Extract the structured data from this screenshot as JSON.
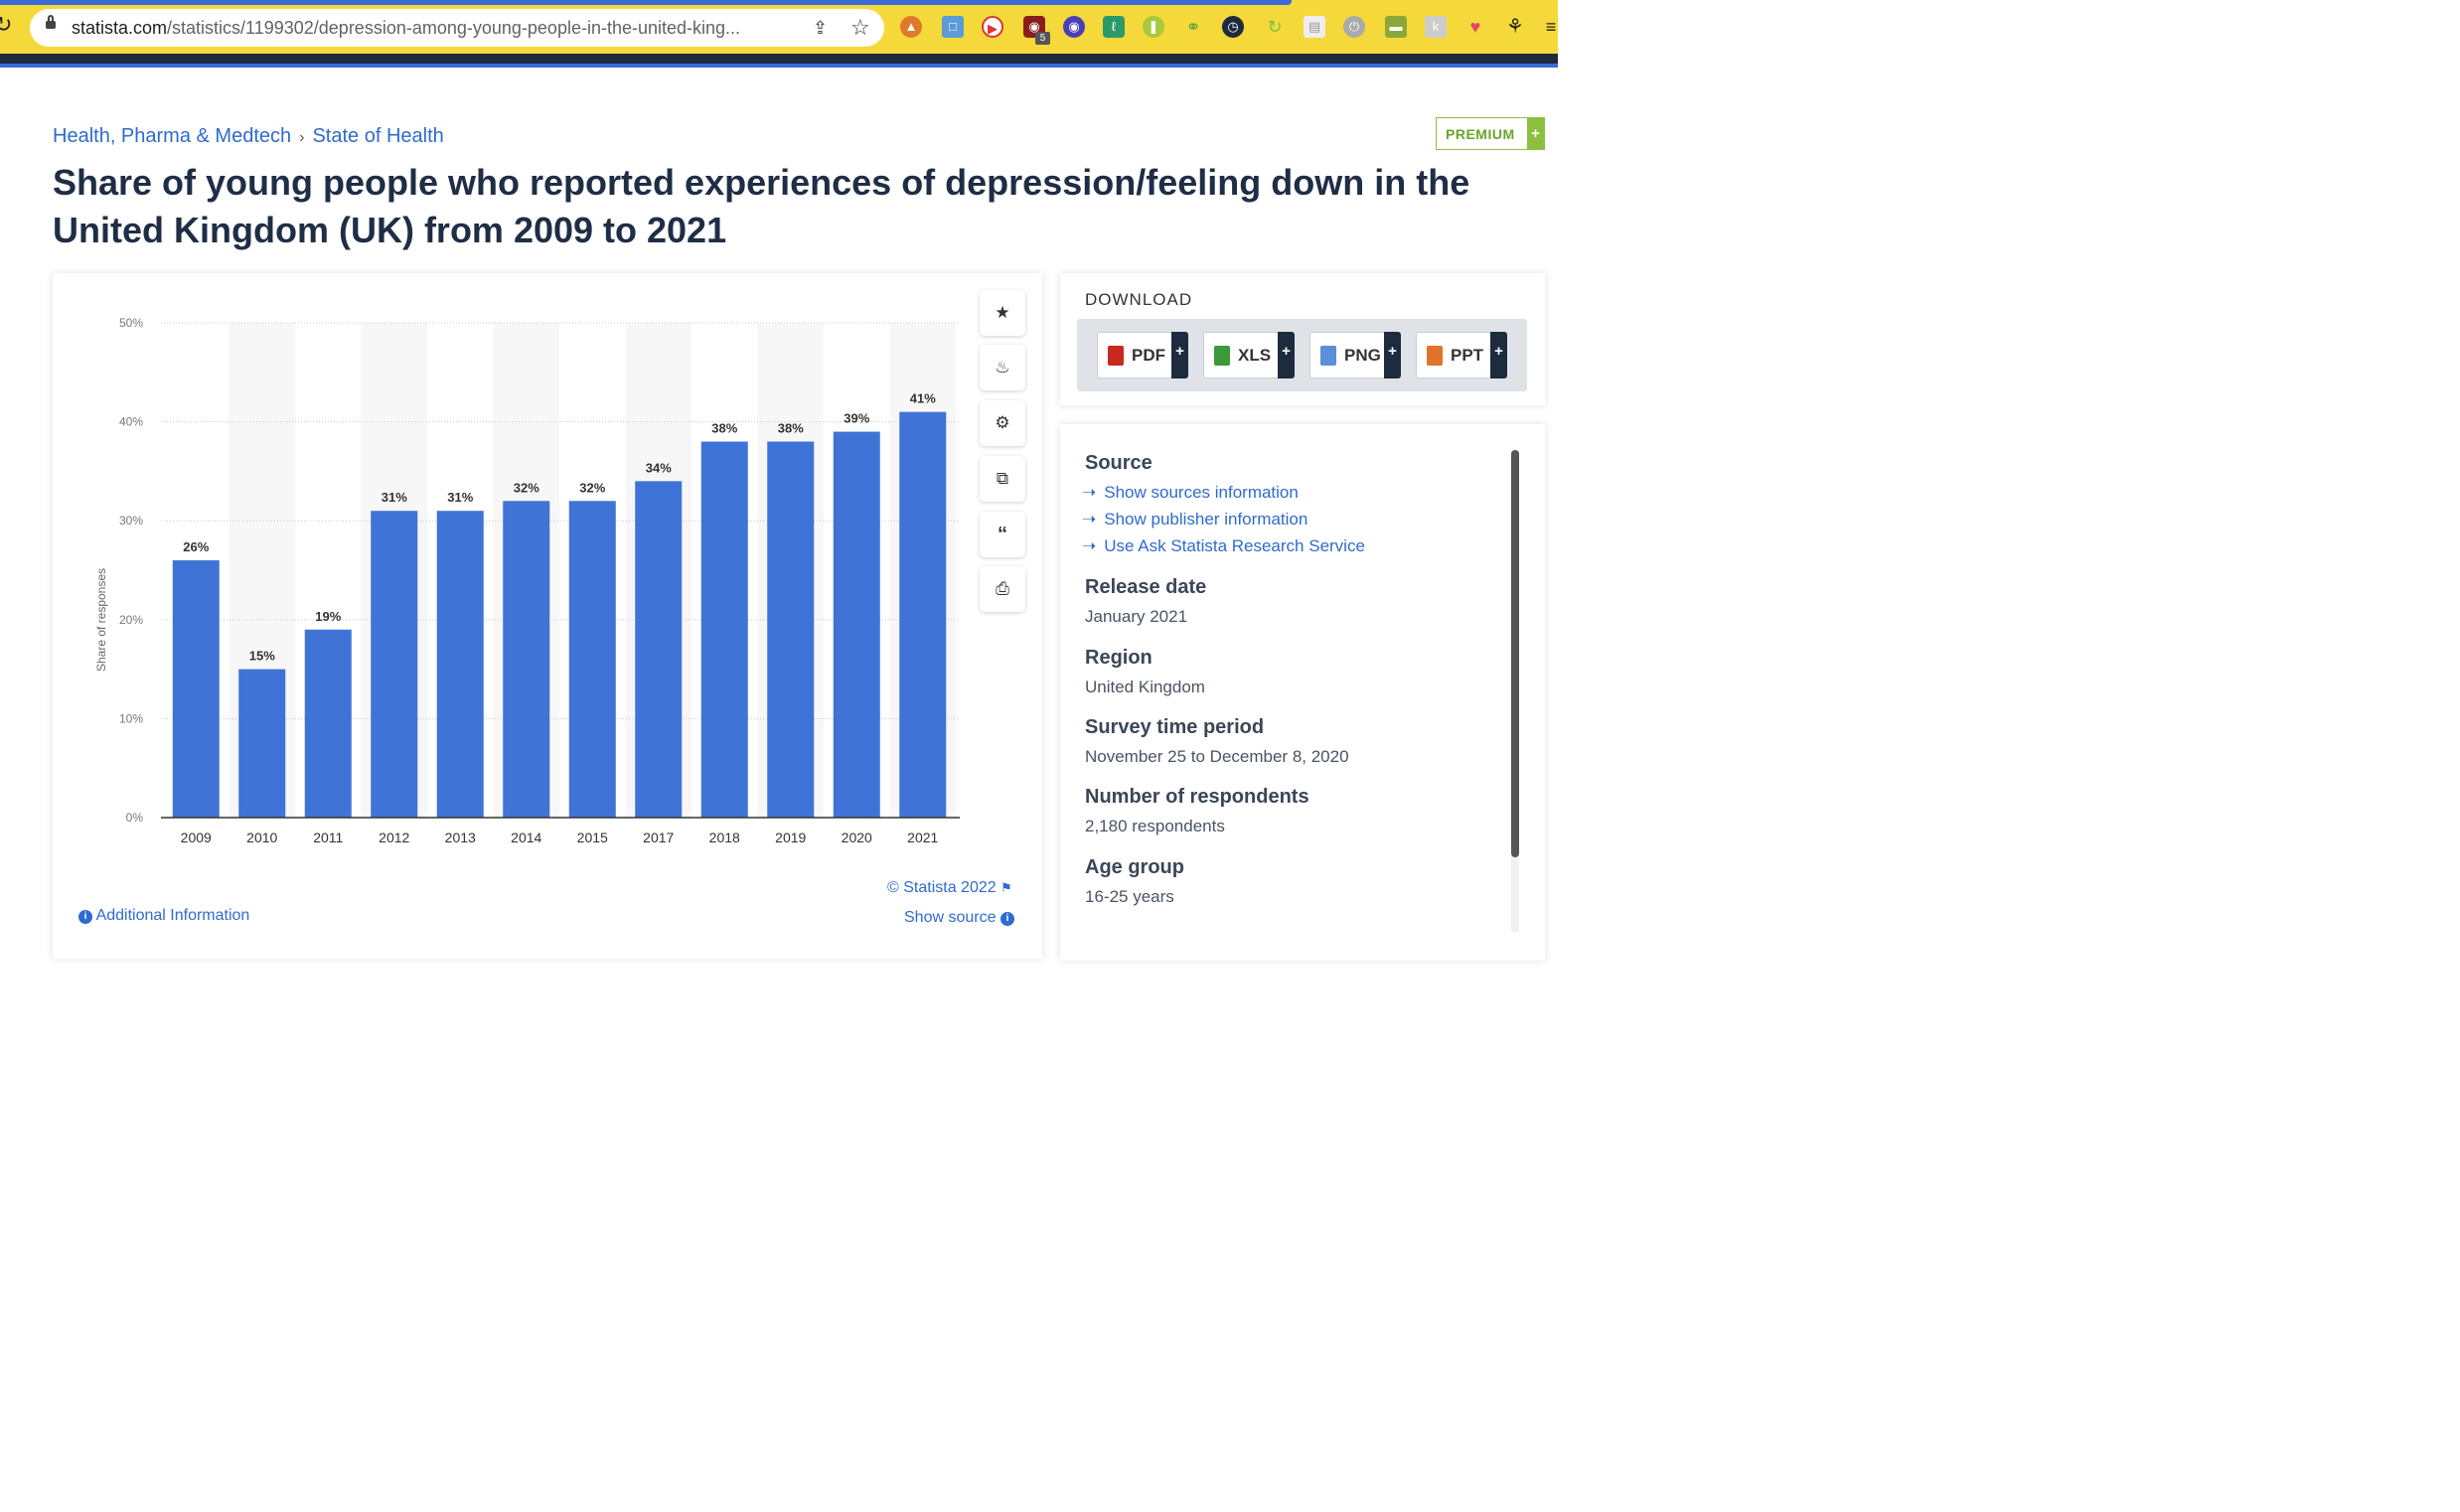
{
  "browser": {
    "url_host": "statista.com",
    "url_path": "/statistics/1199302/depression-among-young-people-in-the-united-king...",
    "extension_badge": "5"
  },
  "breadcrumb": {
    "items": [
      "Health, Pharma & Medtech",
      "State of Health"
    ],
    "separator": "›"
  },
  "premium_label": "PREMIUM",
  "premium_plus": "+",
  "title": "Share of young people who reported experiences of depression/feeling down in the United Kingdom (UK) from 2009 to 2021",
  "chart_data": {
    "type": "bar",
    "categories": [
      "2009",
      "2010",
      "2011",
      "2012",
      "2013",
      "2014",
      "2015",
      "2017",
      "2018",
      "2019",
      "2020",
      "2021"
    ],
    "values": [
      26,
      15,
      19,
      31,
      31,
      32,
      32,
      34,
      38,
      38,
      39,
      41
    ],
    "value_labels": [
      "26%",
      "15%",
      "19%",
      "31%",
      "31%",
      "32%",
      "32%",
      "34%",
      "38%",
      "38%",
      "39%",
      "41%"
    ],
    "ylabel": "Share of responses",
    "ylim": [
      0,
      50
    ],
    "yticks": [
      "0%",
      "10%",
      "20%",
      "30%",
      "40%",
      "50%"
    ],
    "bar_color": "#3f73d6",
    "grid": true
  },
  "chart_footer": {
    "credit": "© Statista 2022",
    "show_source": "Show source",
    "additional_info": "Additional Information"
  },
  "download": {
    "title": "DOWNLOAD",
    "buttons": [
      {
        "label": "PDF",
        "color": "#c8281e"
      },
      {
        "label": "XLS",
        "color": "#3c9a3a"
      },
      {
        "label": "PNG",
        "color": "#5b8fd8"
      },
      {
        "label": "PPT",
        "color": "#e0732b"
      }
    ],
    "plus": "+"
  },
  "info": {
    "source_heading": "Source",
    "source_links": [
      "Show sources information",
      "Show publisher information",
      "Use Ask Statista Research Service"
    ],
    "release_date_heading": "Release date",
    "release_date": "January 2021",
    "region_heading": "Region",
    "region": "United Kingdom",
    "survey_period_heading": "Survey time period",
    "survey_period": "November 25 to December 8, 2020",
    "respondents_heading": "Number of respondents",
    "respondents": "2,180 respondents",
    "age_group_heading": "Age group",
    "age_group": "16-25 years"
  },
  "accent_color": "#2f6bce"
}
